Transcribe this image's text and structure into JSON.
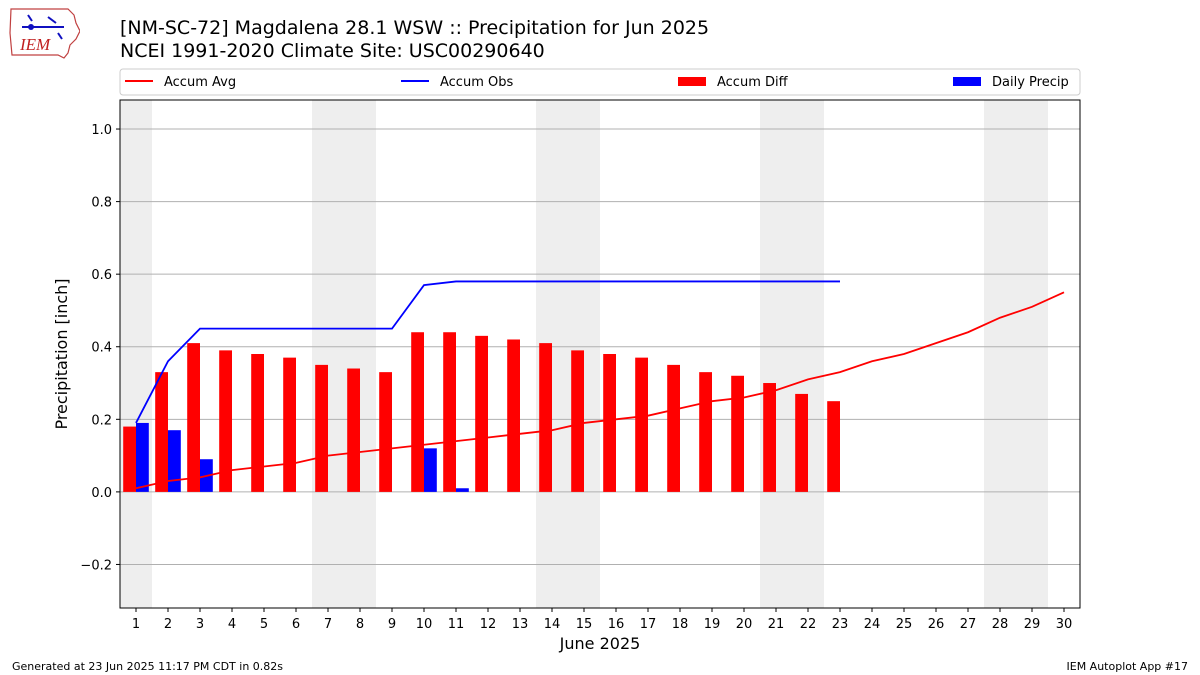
{
  "title_line1": "[NM-SC-72] Magdalena 28.1 WSW :: Precipitation for Jun 2025",
  "title_line2": "NCEI 1991-2020 Climate Site: USC00290640",
  "footer_left": "Generated at 23 Jun 2025 11:17 PM CDT in 0.82s",
  "footer_right": "IEM Autoplot App #17",
  "logo_text": "IEM",
  "colors": {
    "avg": "#ff0000",
    "obs": "#0000ff",
    "diff": "#ff0000",
    "daily": "#0000ff",
    "weekend": "#eeeeee",
    "grid": "#b0b0b0"
  },
  "chart_data": {
    "type": "bar",
    "xlabel": "June 2025",
    "ylabel": "Precipitation [inch]",
    "ylim": [
      -0.32,
      1.08
    ],
    "xlim": [
      0.5,
      30.5
    ],
    "yticks": [
      -0.2,
      0.0,
      0.2,
      0.4,
      0.6,
      0.8,
      1.0
    ],
    "yticklabels": [
      "−0.2",
      "0.0",
      "0.2",
      "0.4",
      "0.6",
      "0.8",
      "1.0"
    ],
    "days": [
      1,
      2,
      3,
      4,
      5,
      6,
      7,
      8,
      9,
      10,
      11,
      12,
      13,
      14,
      15,
      16,
      17,
      18,
      19,
      20,
      21,
      22,
      23,
      24,
      25,
      26,
      27,
      28,
      29,
      30
    ],
    "weekend_days": [
      1,
      7,
      8,
      14,
      15,
      21,
      22,
      28,
      29
    ],
    "grid": true,
    "legend_position": "top",
    "legend": [
      {
        "label": "Accum Avg",
        "kind": "line",
        "color": "#ff0000"
      },
      {
        "label": "Accum Obs",
        "kind": "line",
        "color": "#0000ff"
      },
      {
        "label": "Accum Diff",
        "kind": "bar",
        "color": "#ff0000"
      },
      {
        "label": "Daily Precip",
        "kind": "bar",
        "color": "#0000ff"
      }
    ],
    "series": [
      {
        "name": "Accum Avg",
        "type": "line",
        "values": [
          0.01,
          0.03,
          0.04,
          0.06,
          0.07,
          0.08,
          0.1,
          0.11,
          0.12,
          0.13,
          0.14,
          0.15,
          0.16,
          0.17,
          0.19,
          0.2,
          0.21,
          0.23,
          0.25,
          0.26,
          0.28,
          0.31,
          0.33,
          0.36,
          0.38,
          0.41,
          0.44,
          0.48,
          0.51,
          0.55
        ]
      },
      {
        "name": "Accum Obs",
        "type": "line",
        "values": [
          0.19,
          0.36,
          0.45,
          0.45,
          0.45,
          0.45,
          0.45,
          0.45,
          0.45,
          0.57,
          0.58,
          0.58,
          0.58,
          0.58,
          0.58,
          0.58,
          0.58,
          0.58,
          0.58,
          0.58,
          0.58,
          0.58,
          0.58
        ]
      },
      {
        "name": "Accum Diff",
        "type": "bar",
        "values": [
          0.18,
          0.33,
          0.41,
          0.39,
          0.38,
          0.37,
          0.35,
          0.34,
          0.33,
          0.44,
          0.44,
          0.43,
          0.42,
          0.41,
          0.39,
          0.38,
          0.37,
          0.35,
          0.33,
          0.32,
          0.3,
          0.27,
          0.25
        ]
      },
      {
        "name": "Daily Precip",
        "type": "bar",
        "values": [
          0.19,
          0.17,
          0.09,
          0,
          0,
          0,
          0,
          0,
          0,
          0.12,
          0.01,
          0,
          0,
          0,
          0,
          0,
          0,
          0,
          0,
          0,
          0,
          0,
          0
        ]
      }
    ]
  }
}
